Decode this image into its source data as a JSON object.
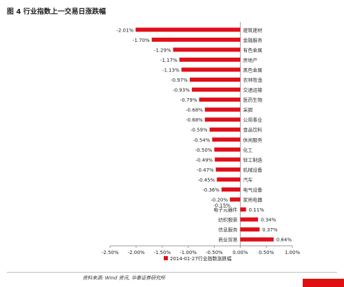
{
  "figure": {
    "title": "图 4 行业指数上一交易日涨跌幅",
    "source": "资料来源: Wind 资讯, 华泰证券研究所"
  },
  "colors": {
    "bar": "#e0101a",
    "accent": "#d11111"
  },
  "chart_data": {
    "type": "bar",
    "orientation": "horizontal",
    "title": "",
    "xlabel": "",
    "ylabel": "",
    "xlim": [
      -2.5,
      1.0
    ],
    "x_ticks": [
      "-2.50%",
      "-2.00%",
      "-1.50%",
      "-1.00%",
      "-0.50%",
      "0.00%",
      "0.50%",
      "1.00%"
    ],
    "x_tick_values": [
      -2.5,
      -2.0,
      -1.5,
      -1.0,
      -0.5,
      0.0,
      0.5,
      1.0
    ],
    "grid": false,
    "legend_position": "bottom-center",
    "categories": [
      "建筑建材",
      "金融服务",
      "有色金属",
      "房地产",
      "黑色金属",
      "农林牧渔",
      "交通运输",
      "医药生物",
      "采掘",
      "公用事业",
      "食品饮料",
      "休闲服务",
      "化工",
      "轻工制造",
      "机械设备",
      "汽车",
      "电气设备",
      "家用电器",
      "电子元器件",
      "纺织服装",
      "信息服务",
      "商业贸易"
    ],
    "series": [
      {
        "name": "2014-01-27行业指数涨跌幅",
        "values": [
          -2.01,
          -1.7,
          -1.29,
          -1.17,
          -1.13,
          -0.97,
          -0.93,
          -0.79,
          -0.68,
          -0.68,
          -0.59,
          -0.54,
          -0.5,
          -0.49,
          -0.47,
          -0.45,
          -0.36,
          -0.2,
          0.11,
          0.34,
          0.37,
          0.64
        ],
        "labels": [
          "-2.01%",
          "-1.70%",
          "-1.29%",
          "-1.17%",
          "-1.13%",
          "-0.97%",
          "-0.93%",
          "-0.79%",
          "-0.68%",
          "-0.68%",
          "-0.59%",
          "-0.54%",
          "-0.50%",
          "-0.49%",
          "-0.47%",
          "-0.45%",
          "-0.36%",
          "-0.20%",
          "0.11%",
          "0.34%",
          "0.37%",
          "0.64%"
        ]
      }
    ],
    "extra_label": "-0.15%"
  }
}
